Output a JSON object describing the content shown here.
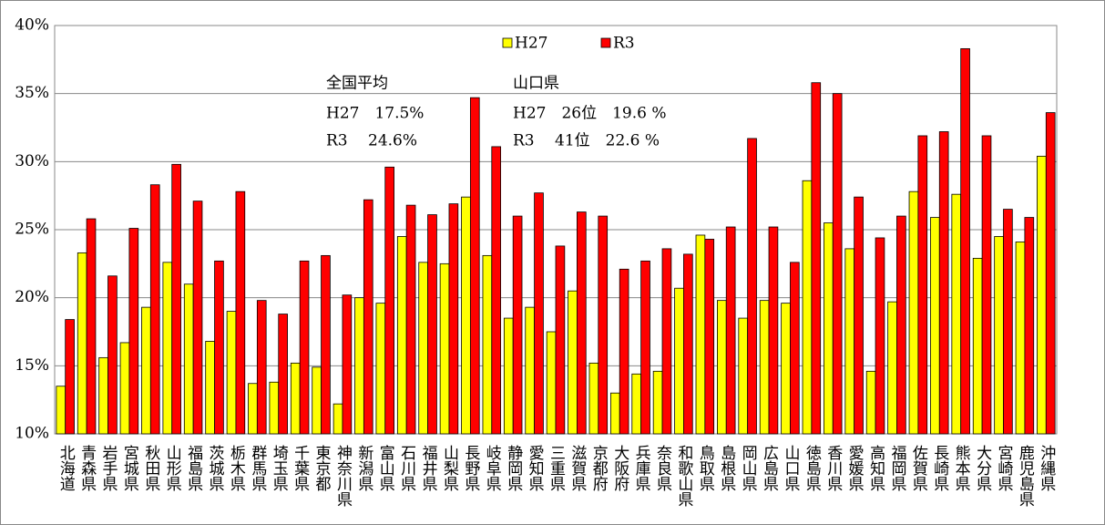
{
  "chart_data": {
    "type": "bar",
    "categories": [
      "北海道",
      "青森県",
      "岩手県",
      "宮城県",
      "秋田県",
      "山形県",
      "福島県",
      "茨城県",
      "栃木県",
      "群馬県",
      "埼玉県",
      "千葉県",
      "東京都",
      "神奈川県",
      "新潟県",
      "富山県",
      "石川県",
      "福井県",
      "山梨県",
      "長野県",
      "岐阜県",
      "静岡県",
      "愛知県",
      "三重県",
      "滋賀県",
      "京都府",
      "大阪府",
      "兵庫県",
      "奈良県",
      "和歌山県",
      "鳥取県",
      "島根県",
      "岡山県",
      "広島県",
      "山口県",
      "徳島県",
      "香川県",
      "愛媛県",
      "高知県",
      "福岡県",
      "佐賀県",
      "長崎県",
      "熊本県",
      "大分県",
      "宮崎県",
      "鹿児島県",
      "沖縄県"
    ],
    "series": [
      {
        "name": "H27",
        "color": "#ffff00",
        "values": [
          13.5,
          23.3,
          15.6,
          16.7,
          19.3,
          22.6,
          21.0,
          16.8,
          19.0,
          13.7,
          13.8,
          15.2,
          14.9,
          12.2,
          20.0,
          19.6,
          24.5,
          22.6,
          22.5,
          27.4,
          23.1,
          18.5,
          19.3,
          17.5,
          20.5,
          15.2,
          13.0,
          14.4,
          14.6,
          20.7,
          24.6,
          19.8,
          18.5,
          19.8,
          19.6,
          28.6,
          25.5,
          23.6,
          14.6,
          19.7,
          27.8,
          25.9,
          27.6,
          22.9,
          24.5,
          24.1,
          30.4
        ]
      },
      {
        "name": "R3",
        "color": "#ff0000",
        "values": [
          18.4,
          25.8,
          21.6,
          25.1,
          28.3,
          29.8,
          27.1,
          22.7,
          27.8,
          19.8,
          18.8,
          22.7,
          23.1,
          20.2,
          27.2,
          29.6,
          26.8,
          26.1,
          26.9,
          34.7,
          31.1,
          26.0,
          27.7,
          23.8,
          26.3,
          26.0,
          22.1,
          22.7,
          23.6,
          23.2,
          24.3,
          25.2,
          31.7,
          25.2,
          22.6,
          35.8,
          35.0,
          27.4,
          24.4,
          26.0,
          31.9,
          32.2,
          38.3,
          31.9,
          26.5,
          25.9,
          33.6
        ]
      }
    ],
    "ylim": [
      10,
      40
    ],
    "yticks": [
      {
        "value": 10,
        "label": "10%"
      },
      {
        "value": 15,
        "label": "15%"
      },
      {
        "value": 20,
        "label": "20%"
      },
      {
        "value": 25,
        "label": "25%"
      },
      {
        "value": 30,
        "label": "30%"
      },
      {
        "value": 35,
        "label": "35%"
      },
      {
        "value": 40,
        "label": "40%"
      }
    ],
    "grid": true,
    "annotations": [
      {
        "title": "全国平均",
        "lines": [
          "H27　17.5%",
          "R3　 24.6%"
        ]
      },
      {
        "title": "山口県",
        "lines": [
          "H27　26位　19.6 %",
          "R3　 41位　22.6 %"
        ]
      }
    ]
  }
}
